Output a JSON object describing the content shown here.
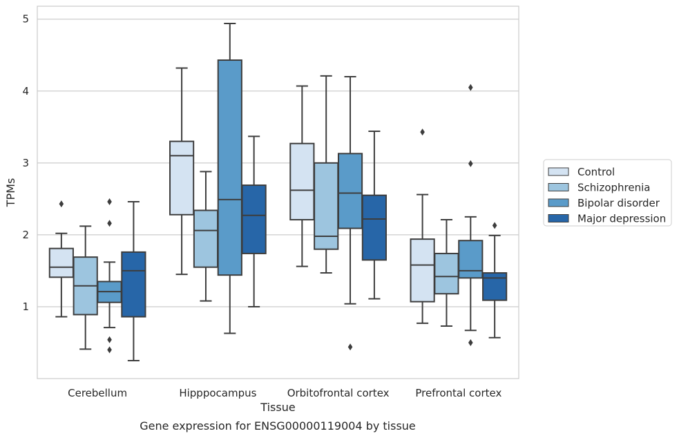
{
  "chart_data": {
    "type": "boxplot",
    "title": "",
    "caption": "Gene expression for ENSG00000119004 by tissue",
    "xlabel": "Tissue",
    "ylabel": "TPMs",
    "ylim": [
      0.0,
      5.18
    ],
    "yticks": [
      1,
      2,
      3,
      4,
      5
    ],
    "grid": "horizontal",
    "legend_position": "right",
    "categories": [
      "Cerebellum",
      "Hipppocampus",
      "Orbitofrontal cortex",
      "Prefrontal cortex"
    ],
    "series": [
      {
        "name": "Control",
        "color": "#d4e3f2",
        "boxes": [
          {
            "whislo": 0.86,
            "q1": 1.41,
            "med": 1.55,
            "q3": 1.81,
            "whishi": 2.02,
            "fliers": [
              2.43
            ]
          },
          {
            "whislo": 1.45,
            "q1": 2.28,
            "med": 3.1,
            "q3": 3.3,
            "whishi": 4.32,
            "fliers": []
          },
          {
            "whislo": 1.56,
            "q1": 2.21,
            "med": 2.62,
            "q3": 3.27,
            "whishi": 4.07,
            "fliers": []
          },
          {
            "whislo": 0.77,
            "q1": 1.07,
            "med": 1.58,
            "q3": 1.94,
            "whishi": 2.56,
            "fliers": [
              3.43
            ]
          }
        ]
      },
      {
        "name": "Schizophrenia",
        "color": "#9dc5df",
        "boxes": [
          {
            "whislo": 0.41,
            "q1": 0.89,
            "med": 1.29,
            "q3": 1.69,
            "whishi": 2.12,
            "fliers": []
          },
          {
            "whislo": 1.08,
            "q1": 1.55,
            "med": 2.06,
            "q3": 2.34,
            "whishi": 2.88,
            "fliers": []
          },
          {
            "whislo": 1.47,
            "q1": 1.8,
            "med": 1.98,
            "q3": 3.0,
            "whishi": 4.21,
            "fliers": []
          },
          {
            "whislo": 0.73,
            "q1": 1.18,
            "med": 1.42,
            "q3": 1.74,
            "whishi": 2.21,
            "fliers": []
          }
        ]
      },
      {
        "name": "Bipolar disorder",
        "color": "#5a9bc9",
        "boxes": [
          {
            "whislo": 0.71,
            "q1": 1.06,
            "med": 1.21,
            "q3": 1.35,
            "whishi": 1.62,
            "fliers": [
              2.46,
              2.16,
              0.54,
              0.4
            ]
          },
          {
            "whislo": 0.63,
            "q1": 1.44,
            "med": 2.49,
            "q3": 4.43,
            "whishi": 4.94,
            "fliers": []
          },
          {
            "whislo": 1.04,
            "q1": 2.09,
            "med": 2.58,
            "q3": 3.13,
            "whishi": 4.2,
            "fliers": [
              0.44
            ]
          },
          {
            "whislo": 0.67,
            "q1": 1.4,
            "med": 1.5,
            "q3": 1.92,
            "whishi": 2.25,
            "fliers": [
              4.05,
              2.99,
              0.5
            ]
          }
        ]
      },
      {
        "name": "Major depression",
        "color": "#2766a8",
        "boxes": [
          {
            "whislo": 0.25,
            "q1": 0.86,
            "med": 1.5,
            "q3": 1.76,
            "whishi": 2.46,
            "fliers": []
          },
          {
            "whislo": 1.0,
            "q1": 1.74,
            "med": 2.27,
            "q3": 2.69,
            "whishi": 3.37,
            "fliers": []
          },
          {
            "whislo": 1.11,
            "q1": 1.65,
            "med": 2.22,
            "q3": 2.55,
            "whishi": 3.44,
            "fliers": []
          },
          {
            "whislo": 0.57,
            "q1": 1.09,
            "med": 1.4,
            "q3": 1.47,
            "whishi": 1.99,
            "fliers": [
              2.13
            ]
          }
        ]
      }
    ]
  }
}
